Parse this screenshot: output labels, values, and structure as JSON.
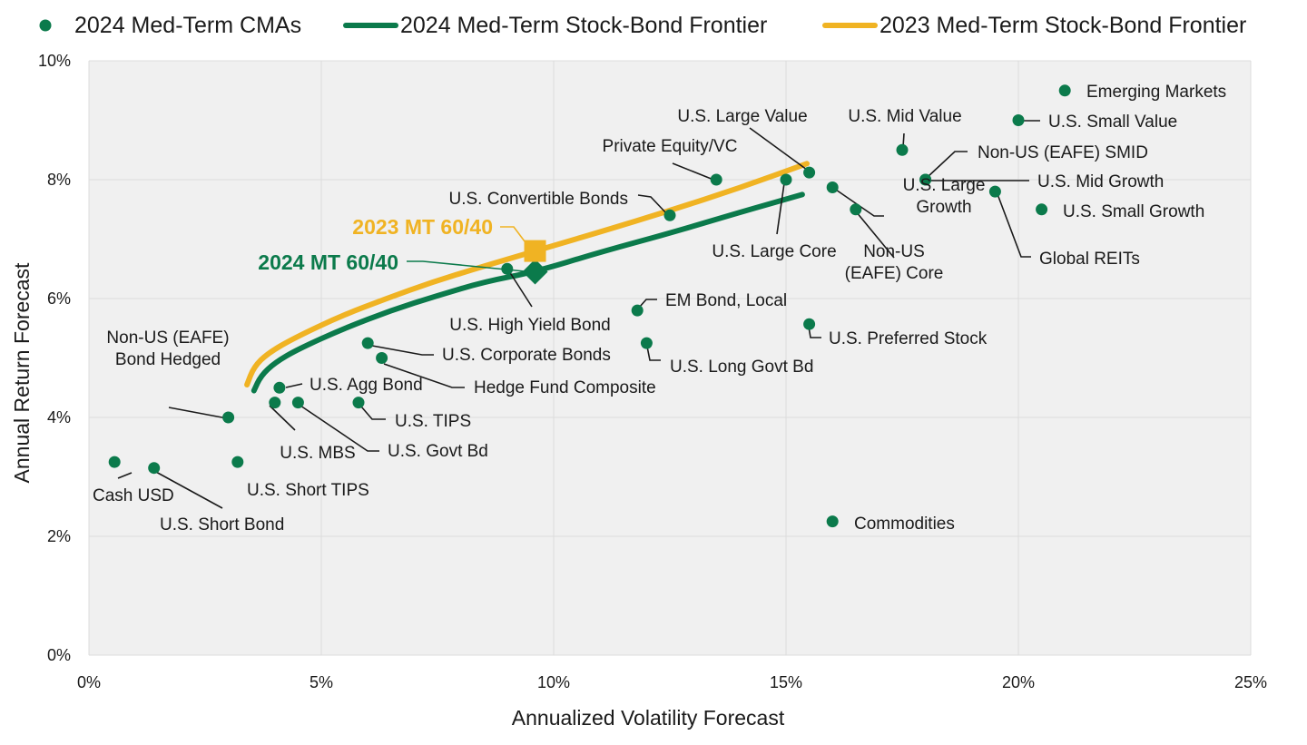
{
  "chart_data": {
    "type": "scatter",
    "title": "",
    "xlabel": "Annualized Volatility Forecast",
    "ylabel": "Annual Return Forecast",
    "xlim": [
      0,
      25
    ],
    "ylim": [
      0,
      10
    ],
    "x_ticks": [
      0,
      5,
      10,
      15,
      20,
      25
    ],
    "y_ticks": [
      0,
      2,
      4,
      6,
      8,
      10
    ],
    "x_tick_labels": [
      "0%",
      "5%",
      "10%",
      "15%",
      "20%",
      "25%"
    ],
    "y_tick_labels": [
      "0%",
      "2%",
      "4%",
      "6%",
      "8%",
      "10%"
    ],
    "grid": true,
    "legend_position": "top",
    "colors": {
      "cma": "#0b7a4b",
      "frontier_2024": "#0b7a4b",
      "frontier_2023": "#f0b323",
      "plot_bg": "#f0f0f0",
      "grid": "#ffffff",
      "text": "#1a1a1a",
      "leader": "#1a1a1a"
    },
    "legend": [
      {
        "label": "2024 Med-Term CMAs",
        "kind": "dot"
      },
      {
        "label": "2024 Med-Term Stock-Bond Frontier",
        "kind": "line2024"
      },
      {
        "label": "2023 Med-Term Stock-Bond Frontier",
        "kind": "line2023"
      }
    ],
    "series": [
      {
        "name": "2024 Med-Term CMAs",
        "points": [
          {
            "label": "Cash USD",
            "x": 0.55,
            "y": 3.25
          },
          {
            "label": "U.S. Short Bond",
            "x": 1.4,
            "y": 3.15
          },
          {
            "label": "U.S. Short TIPS",
            "x": 3.2,
            "y": 3.25
          },
          {
            "label": "Non-US (EAFE)\nBond Hedged",
            "x": 3.0,
            "y": 4.0
          },
          {
            "label": "U.S. MBS",
            "x": 4.0,
            "y": 4.25
          },
          {
            "label": "U.S. Agg Bond",
            "x": 4.1,
            "y": 4.5
          },
          {
            "label": "U.S. Govt Bd",
            "x": 4.5,
            "y": 4.25
          },
          {
            "label": "U.S. TIPS",
            "x": 5.8,
            "y": 4.25
          },
          {
            "label": "U.S. Corporate Bonds",
            "x": 6.0,
            "y": 5.25
          },
          {
            "label": "Hedge Fund Composite",
            "x": 6.3,
            "y": 5.0
          },
          {
            "label": "U.S. High Yield Bond",
            "x": 9.0,
            "y": 6.5
          },
          {
            "label": "EM Bond, Local",
            "x": 11.8,
            "y": 5.8
          },
          {
            "label": "U.S. Long Govt Bd",
            "x": 12.0,
            "y": 5.25
          },
          {
            "label": "U.S. Convertible Bonds",
            "x": 12.5,
            "y": 7.4
          },
          {
            "label": "Private Equity/VC",
            "x": 13.5,
            "y": 8.0
          },
          {
            "label": "U.S. Large Core",
            "x": 15.0,
            "y": 8.0
          },
          {
            "label": "U.S. Large Value",
            "x": 15.5,
            "y": 8.12
          },
          {
            "label": "U.S. Preferred Stock",
            "x": 15.5,
            "y": 5.57
          },
          {
            "label": "Commodities",
            "x": 16.0,
            "y": 2.25
          },
          {
            "label": "U.S. Large\nGrowth",
            "x": 16.0,
            "y": 7.87
          },
          {
            "label": "Non-US\n(EAFE) Core",
            "x": 16.5,
            "y": 7.5
          },
          {
            "label": "U.S. Mid Value",
            "x": 17.5,
            "y": 8.5
          },
          {
            "label": "Non-US (EAFE) SMID",
            "x": 18.0,
            "y": 8.0
          },
          {
            "label": "U.S. Mid Growth",
            "x": 18.0,
            "y": 8.0
          },
          {
            "label": "Global REITs",
            "x": 19.5,
            "y": 7.8
          },
          {
            "label": "U.S. Small Value",
            "x": 20.0,
            "y": 9.0
          },
          {
            "label": "Emerging Markets",
            "x": 21.0,
            "y": 9.5
          },
          {
            "label": "U.S. Small Growth",
            "x": 20.5,
            "y": 7.5
          }
        ]
      },
      {
        "name": "2024 Med-Term Stock-Bond Frontier",
        "points": [
          {
            "x": 3.55,
            "y": 4.45
          },
          {
            "x": 3.7,
            "y": 4.7
          },
          {
            "x": 4.0,
            "y": 4.92
          },
          {
            "x": 4.5,
            "y": 5.15
          },
          {
            "x": 5.5,
            "y": 5.5
          },
          {
            "x": 6.5,
            "y": 5.8
          },
          {
            "x": 7.5,
            "y": 6.05
          },
          {
            "x": 8.5,
            "y": 6.28
          },
          {
            "x": 9.6,
            "y": 6.45
          },
          {
            "x": 11.0,
            "y": 6.78
          },
          {
            "x": 12.5,
            "y": 7.1
          },
          {
            "x": 14.0,
            "y": 7.45
          },
          {
            "x": 15.35,
            "y": 7.75
          }
        ]
      },
      {
        "name": "2023 Med-Term Stock-Bond Frontier",
        "points": [
          {
            "x": 3.4,
            "y": 4.55
          },
          {
            "x": 3.55,
            "y": 4.85
          },
          {
            "x": 3.85,
            "y": 5.08
          },
          {
            "x": 4.4,
            "y": 5.33
          },
          {
            "x": 5.4,
            "y": 5.7
          },
          {
            "x": 6.4,
            "y": 6.0
          },
          {
            "x": 7.4,
            "y": 6.28
          },
          {
            "x": 8.4,
            "y": 6.52
          },
          {
            "x": 9.6,
            "y": 6.8
          },
          {
            "x": 11.0,
            "y": 7.12
          },
          {
            "x": 12.5,
            "y": 7.48
          },
          {
            "x": 14.0,
            "y": 7.86
          },
          {
            "x": 15.45,
            "y": 8.27
          }
        ]
      }
    ],
    "markers": [
      {
        "label": "2024 MT 60/40",
        "x": 9.6,
        "y": 6.45,
        "shape": "diamond",
        "color": "#0b7a4b"
      },
      {
        "label": "2023 MT 60/40",
        "x": 9.6,
        "y": 6.8,
        "shape": "square",
        "color": "#f0b323"
      }
    ]
  }
}
